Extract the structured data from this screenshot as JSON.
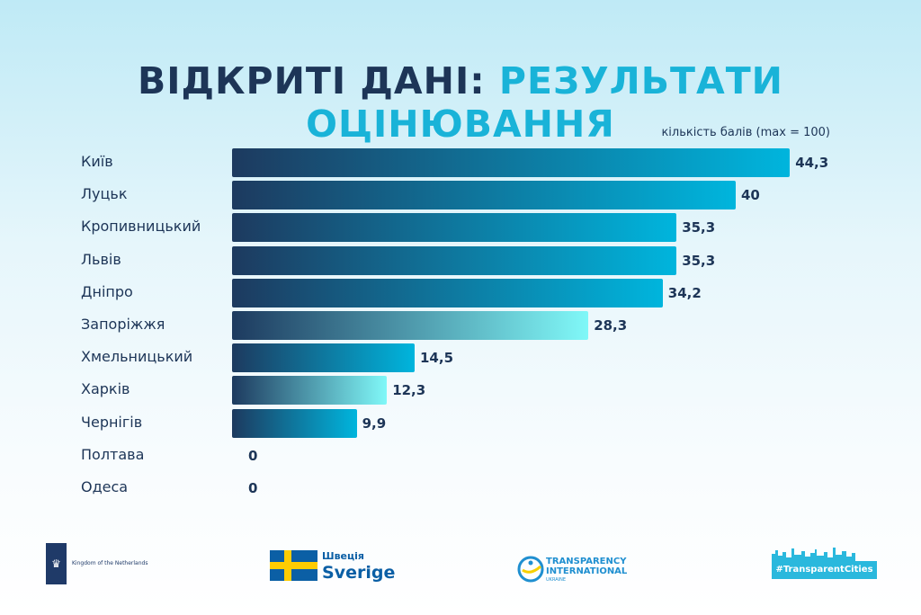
{
  "title": {
    "part1": "ВІДКРИТІ ДАНІ:",
    "part2": "РЕЗУЛЬТАТИ ОЦІНЮВАННЯ"
  },
  "chart_data": {
    "type": "bar",
    "orientation": "horizontal",
    "title": "ВІДКРИТІ ДАНІ: РЕЗУЛЬТАТИ ОЦІНЮВАННЯ",
    "unit_label": "кількість балів (max = 100)",
    "categories": [
      "Київ",
      "Луцьк",
      "Кропивницький",
      "Львів",
      "Дніпро",
      "Запоріжжя",
      "Хмельницький",
      "Харків",
      "Чернігів",
      "Полтава",
      "Одеса"
    ],
    "values": [
      44.3,
      40,
      35.3,
      35.3,
      34.2,
      28.3,
      14.5,
      12.3,
      9.9,
      0,
      0
    ],
    "value_labels": [
      "44,3",
      "40",
      "35,3",
      "35,3",
      "34,2",
      "28,3",
      "14,5",
      "12,3",
      "9,9",
      "0",
      "0"
    ],
    "bar_styles": [
      "blue",
      "blue",
      "blue",
      "blue",
      "blue",
      "light",
      "blue",
      "light",
      "blue",
      "blue",
      "blue"
    ],
    "colors": {
      "dark": "#1d3a5f",
      "blue": "#00b5dd",
      "light": "#80f8f8"
    },
    "xlim": [
      0,
      100
    ],
    "grid": false
  },
  "footer": {
    "netherlands": "Kingdom of the Netherlands",
    "sweden_ua": "Швеція",
    "sweden": "Sverige",
    "ti_line1": "TRANSPARENCY",
    "ti_line2": "INTERNATIONAL",
    "ti_line3": "UKRAINE",
    "hashtag": "#TransparentCities"
  }
}
